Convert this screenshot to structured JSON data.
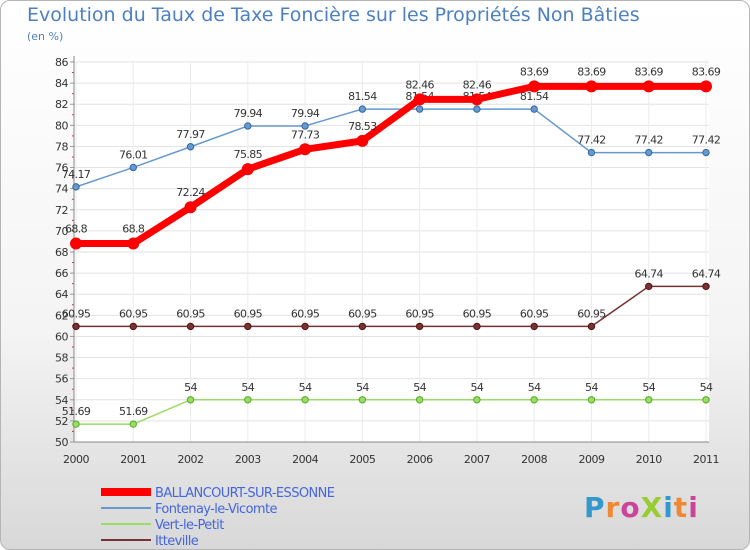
{
  "chart_data": {
    "type": "line",
    "title": "Evolution du Taux de Taxe Foncière sur les Propriétés Non Bâties",
    "subtitle": "(en %)",
    "categories": [
      "2000",
      "2001",
      "2002",
      "2003",
      "2004",
      "2005",
      "2006",
      "2007",
      "2008",
      "2009",
      "2010",
      "2011"
    ],
    "ylim": [
      50,
      86
    ],
    "yticks": [
      50,
      52,
      54,
      56,
      58,
      60,
      62,
      64,
      66,
      68,
      70,
      72,
      74,
      76,
      78,
      80,
      82,
      84,
      86
    ],
    "series": [
      {
        "name": "BALLANCOURT-SUR-ESSONNE",
        "color": "#ff0000",
        "labels": [
          "68.8",
          "68.8",
          "72.24",
          "75.85",
          "77.73",
          "78.53",
          "82.46",
          "82.46",
          "83.69",
          "83.69",
          "83.69",
          "83.69"
        ],
        "values": [
          68.8,
          68.8,
          72.24,
          75.85,
          77.73,
          78.53,
          82.46,
          82.46,
          83.69,
          83.69,
          83.69,
          83.69
        ]
      },
      {
        "name": "Fontenay-le-Vicomte",
        "color": "#6699cc",
        "labels": [
          "74.17",
          "76.01",
          "77.97",
          "79.94",
          "79.94",
          "81.54",
          "81.54",
          "81.54",
          "81.54",
          "77.42",
          "77.42",
          "77.42"
        ],
        "values": [
          74.17,
          76.01,
          77.97,
          79.94,
          79.94,
          81.54,
          81.54,
          81.54,
          81.54,
          77.42,
          77.42,
          77.42
        ]
      },
      {
        "name": "Vert-le-Petit",
        "color": "#99dd66",
        "labels": [
          "51.69",
          "51.69",
          "54",
          "54",
          "54",
          "54",
          "54",
          "54",
          "54",
          "54",
          "54",
          "54"
        ],
        "values": [
          51.69,
          51.69,
          54,
          54,
          54,
          54,
          54,
          54,
          54,
          54,
          54,
          54
        ]
      },
      {
        "name": "Itteville",
        "color": "#773333",
        "labels": [
          "60.95",
          "60.95",
          "60.95",
          "60.95",
          "60.95",
          "60.95",
          "60.95",
          "60.95",
          "60.95",
          "60.95",
          "64.74",
          "64.74"
        ],
        "values": [
          60.95,
          60.95,
          60.95,
          60.95,
          60.95,
          60.95,
          60.95,
          60.95,
          60.95,
          60.95,
          64.74,
          64.74
        ]
      }
    ]
  },
  "logo": {
    "text": "ProXiti"
  }
}
